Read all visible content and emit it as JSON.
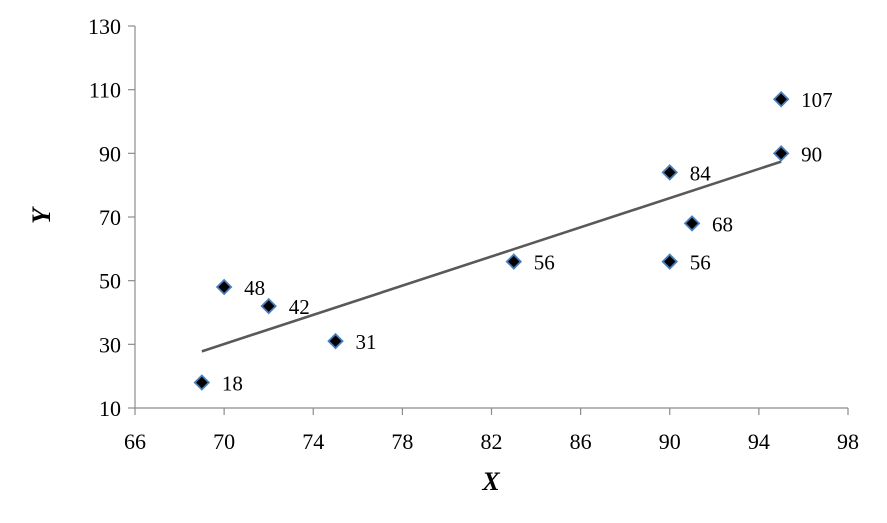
{
  "chart_data": {
    "type": "scatter",
    "title": "",
    "xlabel": "X",
    "ylabel": "Y",
    "xlim": [
      66,
      98
    ],
    "ylim": [
      10,
      130
    ],
    "xticks": [
      66,
      70,
      74,
      78,
      82,
      86,
      90,
      94,
      98
    ],
    "yticks": [
      10,
      30,
      50,
      70,
      90,
      110,
      130
    ],
    "grid": false,
    "legend": "none",
    "marker": "diamond",
    "marker_color": "#000000",
    "marker_edge_color": "#4a7ebb",
    "trendline_color": "#595959",
    "series": [
      {
        "points": [
          {
            "x": 69,
            "y": 18,
            "label": "18"
          },
          {
            "x": 70,
            "y": 48,
            "label": "48"
          },
          {
            "x": 72,
            "y": 42,
            "label": "42"
          },
          {
            "x": 75,
            "y": 31,
            "label": "31"
          },
          {
            "x": 83,
            "y": 56,
            "label": "56"
          },
          {
            "x": 90,
            "y": 84,
            "label": "84"
          },
          {
            "x": 90,
            "y": 56,
            "label": "56"
          },
          {
            "x": 91,
            "y": 68,
            "label": "68"
          },
          {
            "x": 95,
            "y": 107,
            "label": "107"
          },
          {
            "x": 95,
            "y": 90,
            "label": "90"
          }
        ]
      }
    ],
    "trendline": {
      "type": "linear",
      "x_start": 69,
      "y_start": 27.8,
      "x_end": 95,
      "y_end": 87.4
    }
  }
}
